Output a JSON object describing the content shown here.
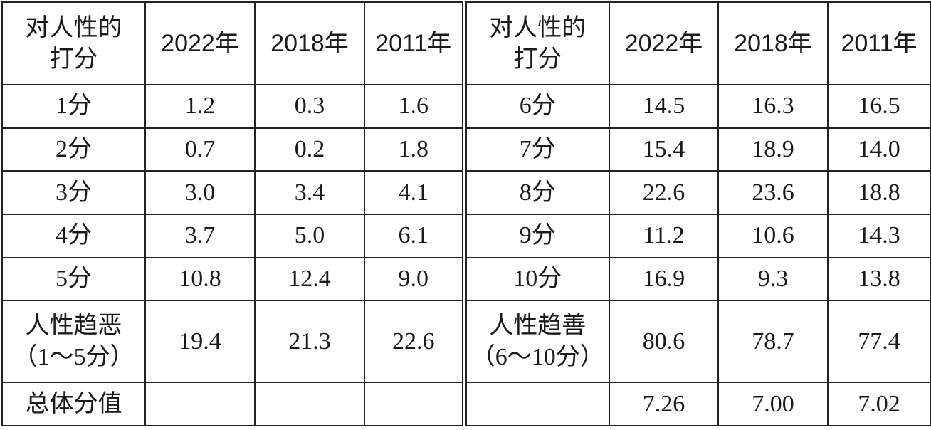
{
  "table": {
    "header": [
      [
        "对人性的",
        "打分"
      ],
      "2022年",
      "2018年",
      "2011年",
      [
        "对人性的",
        "打分"
      ],
      "2022年",
      "2018年",
      "2011年"
    ],
    "rows": [
      [
        "1分",
        "1.2",
        "0.3",
        "1.6",
        "6分",
        "14.5",
        "16.3",
        "16.5"
      ],
      [
        "2分",
        "0.7",
        "0.2",
        "1.8",
        "7分",
        "15.4",
        "18.9",
        "14.0"
      ],
      [
        "3分",
        "3.0",
        "3.4",
        "4.1",
        "8分",
        "22.6",
        "23.6",
        "18.8"
      ],
      [
        "4分",
        "3.7",
        "5.0",
        "6.1",
        "9分",
        "11.2",
        "10.6",
        "14.3"
      ],
      [
        "5分",
        "10.8",
        "12.4",
        "9.0",
        "10分",
        "16.9",
        "9.3",
        "13.8"
      ],
      [
        [
          "人性趋恶",
          "（1～5分）"
        ],
        "19.4",
        "21.3",
        "22.6",
        [
          "人性趋善",
          "（6～10分）"
        ],
        "80.6",
        "78.7",
        "77.4"
      ],
      [
        "总体分值",
        null,
        null,
        null,
        null,
        "7.26",
        "7.00",
        "7.02"
      ]
    ]
  }
}
